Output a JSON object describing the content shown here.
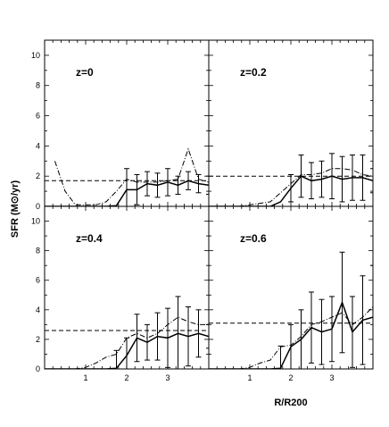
{
  "figure": {
    "ylabel": "SFR (M⊙/yr)",
    "xlabel": "R/R200"
  },
  "chart_data": [
    {
      "type": "line",
      "panel_label": "z=0",
      "xlim": [
        0,
        4
      ],
      "ylim": [
        0,
        11
      ],
      "xticks": [
        "1",
        "2",
        "3"
      ],
      "yticks": [
        "0",
        "2",
        "4",
        "6",
        "8",
        "10"
      ],
      "x": [
        0.25,
        0.5,
        0.75,
        1.0,
        1.25,
        1.5,
        1.75,
        2.0,
        2.25,
        2.5,
        2.75,
        3.0,
        3.25,
        3.5,
        3.75,
        4.0
      ],
      "series": [
        {
          "style": "solid",
          "values": [
            0,
            0,
            0,
            0,
            0,
            0,
            0.05,
            1.1,
            1.1,
            1.5,
            1.4,
            1.6,
            1.4,
            1.7,
            1.5,
            1.4
          ],
          "errors": [
            0,
            0,
            0,
            0,
            0,
            0,
            0,
            1.4,
            1.0,
            0.8,
            0.8,
            0.9,
            0.6,
            0.6,
            0.6,
            0.6
          ]
        },
        {
          "style": "dash-dot",
          "values": [
            3.0,
            1.0,
            0.1,
            0.1,
            0.1,
            0.3,
            1.0,
            1.8,
            1.6,
            1.6,
            1.6,
            1.7,
            1.8,
            3.8,
            1.8,
            1.6
          ]
        },
        {
          "style": "dashed",
          "values": [
            1.7,
            1.7,
            1.7,
            1.7,
            1.7,
            1.7,
            1.7,
            1.7,
            1.7,
            1.7,
            1.7,
            1.7,
            1.7,
            1.7,
            1.7,
            1.7
          ]
        }
      ]
    },
    {
      "type": "line",
      "panel_label": "z=0.2",
      "xlim": [
        0,
        4
      ],
      "ylim": [
        0,
        11
      ],
      "xticks": [
        "1",
        "2",
        "3"
      ],
      "yticks": [
        "0",
        "2",
        "4",
        "6",
        "8",
        "10"
      ],
      "x": [
        0.25,
        0.5,
        0.75,
        1.0,
        1.25,
        1.5,
        1.75,
        2.0,
        2.25,
        2.5,
        2.75,
        3.0,
        3.25,
        3.5,
        3.75,
        4.0
      ],
      "series": [
        {
          "style": "solid",
          "values": [
            0,
            0,
            0,
            0,
            0,
            0,
            0.3,
            1.2,
            2.0,
            1.7,
            1.8,
            2.0,
            1.8,
            1.9,
            1.9,
            1.7
          ],
          "errors": [
            0,
            0,
            0,
            0,
            0,
            0,
            0,
            0.9,
            1.4,
            1.2,
            1.2,
            1.5,
            1.5,
            1.5,
            1.5,
            0.8
          ]
        },
        {
          "style": "dash-dot",
          "values": [
            0,
            0,
            0,
            0.1,
            0.2,
            0.3,
            0.9,
            1.5,
            2.1,
            2.1,
            2.2,
            2.5,
            2.5,
            2.4,
            2.1,
            2.0
          ]
        },
        {
          "style": "dashed",
          "values": [
            2.0,
            2.0,
            2.0,
            2.0,
            2.0,
            2.0,
            2.0,
            2.0,
            2.0,
            2.0,
            2.0,
            2.0,
            2.0,
            2.0,
            2.0,
            2.0
          ]
        }
      ]
    },
    {
      "type": "line",
      "panel_label": "z=0.4",
      "xlim": [
        0,
        4
      ],
      "ylim": [
        0,
        11
      ],
      "xticks": [
        "1",
        "2",
        "3"
      ],
      "yticks": [
        "0",
        "2",
        "4",
        "6",
        "8",
        "10"
      ],
      "x": [
        0.25,
        0.5,
        0.75,
        1.0,
        1.25,
        1.5,
        1.75,
        2.0,
        2.25,
        2.5,
        2.75,
        3.0,
        3.25,
        3.5,
        3.75,
        4.0
      ],
      "series": [
        {
          "style": "solid",
          "values": [
            0,
            0,
            0,
            0,
            0,
            0,
            0.05,
            0.9,
            2.1,
            1.8,
            2.2,
            2.1,
            2.4,
            2.2,
            2.4,
            2.2
          ],
          "errors": [
            0,
            0,
            0,
            0,
            0,
            0,
            1.2,
            1.2,
            1.6,
            1.2,
            1.6,
            2.0,
            2.5,
            2.0,
            1.6,
            0.8
          ]
        },
        {
          "style": "dash-dot",
          "values": [
            0,
            0,
            0,
            0.1,
            0.4,
            0.8,
            1.0,
            2.1,
            2.4,
            2.1,
            2.4,
            3.0,
            3.5,
            3.2,
            3.0,
            3.0
          ]
        },
        {
          "style": "dashed",
          "values": [
            2.6,
            2.6,
            2.6,
            2.6,
            2.6,
            2.6,
            2.6,
            2.6,
            2.6,
            2.6,
            2.6,
            2.6,
            2.6,
            2.6,
            2.6,
            2.6
          ]
        }
      ]
    },
    {
      "type": "line",
      "panel_label": "z=0.6",
      "xlim": [
        0,
        4
      ],
      "ylim": [
        0,
        11
      ],
      "xticks": [
        "1",
        "2",
        "3"
      ],
      "yticks": [
        "0",
        "2",
        "4",
        "6",
        "8",
        "10"
      ],
      "x": [
        0.25,
        0.5,
        0.75,
        1.0,
        1.25,
        1.5,
        1.75,
        2.0,
        2.25,
        2.5,
        2.75,
        3.0,
        3.25,
        3.5,
        3.75,
        4.0
      ],
      "series": [
        {
          "style": "solid",
          "values": [
            0,
            0,
            0,
            0,
            0,
            0,
            0.05,
            1.5,
            2.0,
            2.8,
            2.5,
            2.7,
            4.5,
            2.5,
            3.3,
            3.5
          ],
          "errors": [
            0,
            0,
            0,
            0,
            0,
            0,
            1.5,
            1.5,
            2.0,
            2.4,
            2.2,
            2.2,
            3.4,
            2.4,
            3.0,
            3.5
          ]
        },
        {
          "style": "dash-dot",
          "values": [
            0,
            0,
            0,
            0.1,
            0.4,
            0.6,
            1.5,
            1.6,
            2.2,
            3.0,
            3.2,
            3.5,
            3.8,
            3.0,
            3.5,
            4.2
          ]
        },
        {
          "style": "dashed",
          "values": [
            3.1,
            3.1,
            3.1,
            3.1,
            3.1,
            3.1,
            3.1,
            3.1,
            3.1,
            3.1,
            3.1,
            3.1,
            3.1,
            3.1,
            3.1,
            3.1
          ]
        }
      ]
    }
  ]
}
